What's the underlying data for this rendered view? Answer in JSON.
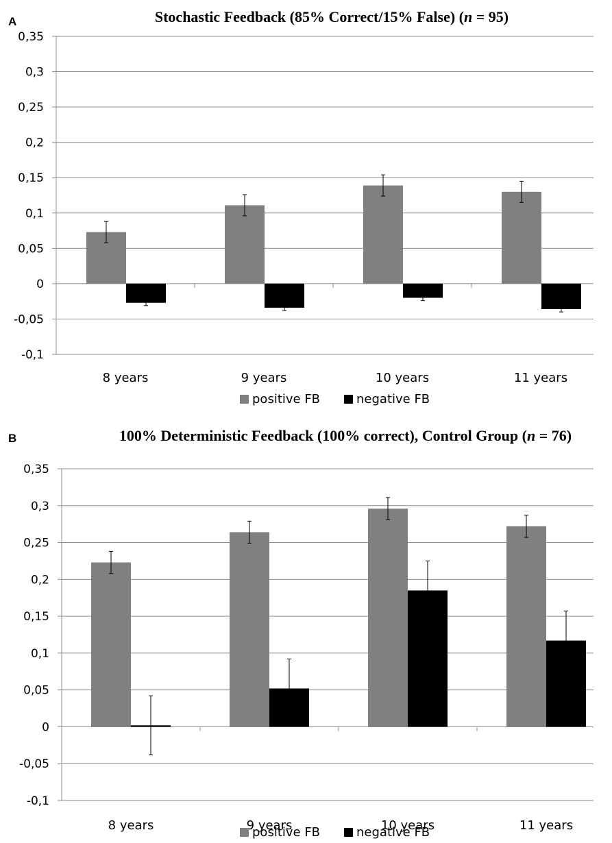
{
  "chart_data": [
    {
      "type": "bar",
      "panel_label": "A",
      "title": "Stochastic Feedback (85% Correct/15% False) (n = 95)",
      "title_parts": {
        "pre": "Stochastic Feedback (85% Correct/15% False) (",
        "italic": "n",
        "post": " = 95)"
      },
      "categories": [
        "8 years",
        "9 years",
        "10 years",
        "11 years"
      ],
      "ylim": [
        -0.1,
        0.35
      ],
      "yticks": [
        "0,35",
        "0,3",
        "0,25",
        "0,2",
        "0,15",
        "0,1",
        "0,05",
        "0",
        "-0,05",
        "-0,1"
      ],
      "ytick_values": [
        0.35,
        0.3,
        0.25,
        0.2,
        0.15,
        0.1,
        0.05,
        0,
        -0.05,
        -0.1
      ],
      "grid": true,
      "legend_position": "bottom",
      "series": [
        {
          "name": "positive FB",
          "color": "#808080",
          "values": [
            0.073,
            0.111,
            0.139,
            0.13
          ],
          "errors": [
            0.015,
            0.015,
            0.015,
            0.015
          ]
        },
        {
          "name": "negative FB",
          "color": "#000000",
          "values": [
            -0.027,
            -0.034,
            -0.02,
            -0.036
          ],
          "errors": [
            0.004,
            0.004,
            0.004,
            0.004
          ]
        }
      ]
    },
    {
      "type": "bar",
      "panel_label": "B",
      "title": "100% Deterministic Feedback (100% correct), Control Group (n = 76)",
      "title_parts": {
        "pre": "100% Deterministic Feedback (100% correct), Control Group (",
        "italic": "n",
        "post": " = 76)"
      },
      "categories": [
        "8 years",
        "9 years",
        "10 years",
        "11 years"
      ],
      "ylim": [
        -0.1,
        0.35
      ],
      "yticks": [
        "0,35",
        "0,3",
        "0,25",
        "0,2",
        "0,15",
        "0,1",
        "0,05",
        "0",
        "-0,05",
        "-0,1"
      ],
      "ytick_values": [
        0.35,
        0.3,
        0.25,
        0.2,
        0.15,
        0.1,
        0.05,
        0,
        -0.05,
        -0.1
      ],
      "grid": true,
      "legend_position": "bottom",
      "series": [
        {
          "name": "positive FB",
          "color": "#808080",
          "values": [
            0.223,
            0.264,
            0.296,
            0.272
          ],
          "errors": [
            0.015,
            0.015,
            0.015,
            0.015
          ]
        },
        {
          "name": "negative FB",
          "color": "#000000",
          "values": [
            0.002,
            0.052,
            0.185,
            0.117
          ],
          "errors": [
            0.04,
            0.04,
            0.04,
            0.04
          ]
        }
      ]
    }
  ]
}
